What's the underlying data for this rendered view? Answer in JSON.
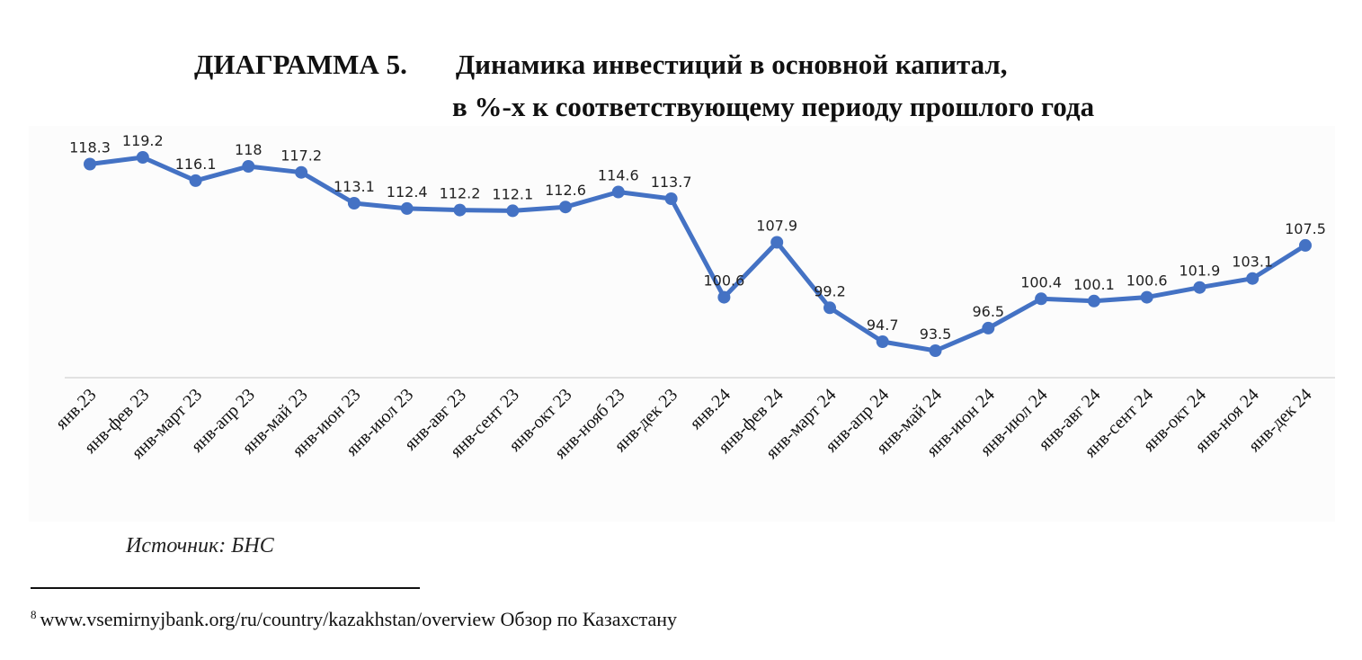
{
  "header": {
    "diagram_label": "ДИАГРАММА 5.",
    "title_line1": "Динамика инвестиций в основной капитал,",
    "title_line2": "в %-х к соответствующему периоду прошлого года"
  },
  "chart_data": {
    "type": "line",
    "title": "Динамика инвестиций в основной капитал, в %-х к соответствующему периоду прошлого года",
    "categories": [
      "янв.23",
      "янв-фев 23",
      "янв-март 23",
      "янв-апр 23",
      "янв-май 23",
      "янв-июн 23",
      "янв-июл 23",
      "янв-авг 23",
      "янв-сент 23",
      "янв-окт 23",
      "янв-нояб 23",
      "янв-дек 23",
      "янв.24",
      "янв-фев 24",
      "янв-март 24",
      "янв-апр 24",
      "янв-май 24",
      "янв-июн 24",
      "янв-июл 24",
      "янв-авг 24",
      "янв-сент 24",
      "янв-окт 24",
      "янв-ноя 24",
      "янв-дек 24"
    ],
    "series": [
      {
        "values": [
          118.3,
          119.2,
          116.1,
          118,
          117.2,
          113.1,
          112.4,
          112.2,
          112.1,
          112.6,
          114.6,
          113.7,
          100.6,
          107.9,
          99.2,
          94.7,
          93.5,
          96.5,
          100.4,
          100.1,
          100.6,
          101.9,
          103.1,
          107.5
        ],
        "color": "#4472c4"
      }
    ],
    "data_labels": true,
    "grid": false,
    "legend": "none",
    "ylim": [
      85,
      124
    ]
  },
  "source_text": "Источник: БНС",
  "footnote": {
    "marker": "8",
    "text": "www.vsemirnyjbank.org/ru/country/kazakhstan/overview Обзор по Казахстану"
  }
}
